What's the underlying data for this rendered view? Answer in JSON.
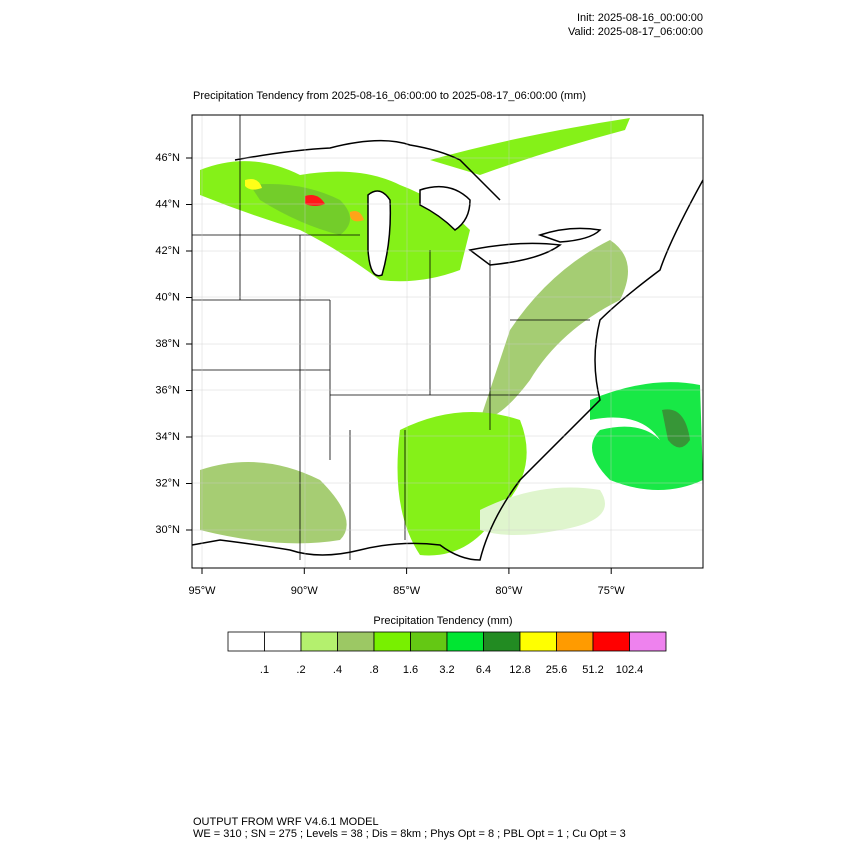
{
  "header": {
    "init": "Init: 2025-08-16_00:00:00",
    "valid": "Valid: 2025-08-17_06:00:00"
  },
  "map": {
    "title": "Precipitation Tendency from 2025-08-16_06:00:00 to 2025-08-17_06:00:00   (mm)",
    "lat_labels": [
      "46°N",
      "44°N",
      "42°N",
      "40°N",
      "38°N",
      "36°N",
      "34°N",
      "32°N",
      "30°N"
    ],
    "lon_labels": [
      "95°W",
      "90°W",
      "85°W",
      "80°W",
      "75°W"
    ]
  },
  "colorbar": {
    "title": "Precipitation Tendency  (mm)",
    "colors": [
      "#ffffff",
      "#ffffff",
      "#b4f06e",
      "#9cc864",
      "#78f000",
      "#64c814",
      "#00e632",
      "#228b22",
      "#ffff00",
      "#ff9b00",
      "#ff0000",
      "#ee82ee"
    ],
    "labels": [
      ".1",
      ".2",
      ".4",
      ".8",
      "1.6",
      "3.2",
      "6.4",
      "12.8",
      "25.6",
      "51.2",
      "102.4"
    ]
  },
  "footer": {
    "line1": "OUTPUT FROM WRF V4.6.1 MODEL",
    "line2": "WE = 310 ; SN = 275 ; Levels = 38 ; Dis = 8km ; Phys Opt = 8 ; PBL Opt = 1 ; Cu Opt = 3"
  }
}
